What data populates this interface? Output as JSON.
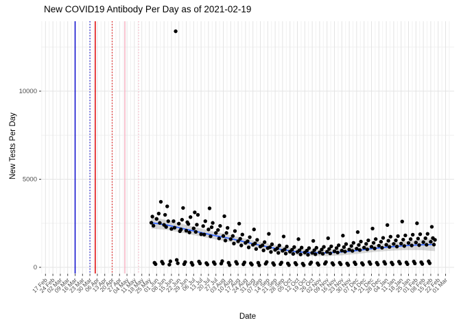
{
  "title": "New COVID19 Antibody Per Day as of 2021-02-19",
  "chart_data": {
    "type": "scatter",
    "title": "New COVID19 Antibody Per Day as of 2021-02-19",
    "xlabel": "Date",
    "ylabel": "New Tests Per Day",
    "x_epoch": "2020-02-17",
    "x_tick_interval_days": 7,
    "x_tick_labels": [
      "17 Feb",
      "24 Feb",
      "02 Mar",
      "09 Mar",
      "16 Mar",
      "23 Mar",
      "30 Mar",
      "06 Apr",
      "13 Apr",
      "20 Apr",
      "27 Apr",
      "04 May",
      "11 May",
      "18 May",
      "25 May",
      "01 Jun",
      "08 Jun",
      "15 Jun",
      "22 Jun",
      "29 Jun",
      "06 Jul",
      "13 Jul",
      "20 Jul",
      "27 Jul",
      "03 Aug",
      "10 Aug",
      "17 Aug",
      "24 Aug",
      "31 Aug",
      "07 Sep",
      "14 Sep",
      "21 Sep",
      "28 Sep",
      "05 Oct",
      "12 Oct",
      "19 Oct",
      "26 Oct",
      "02 Nov",
      "09 Nov",
      "16 Nov",
      "23 Nov",
      "30 Nov",
      "07 Dec",
      "14 Dec",
      "21 Dec",
      "28 Dec",
      "04 Jan",
      "11 Jan",
      "18 Jan",
      "25 Jan",
      "01 Feb",
      "08 Feb",
      "15 Feb",
      "22 Feb",
      "01 Mar"
    ],
    "y_ticks": [
      0,
      5000,
      10000
    ],
    "y_tick_labels": [
      "0",
      "5000",
      "10000"
    ],
    "y_minor_ticks": [
      2500,
      7500,
      12500
    ],
    "ylim": [
      -350,
      14000
    ],
    "xlim_days": [
      -4,
      386
    ],
    "grid": true,
    "legend": "none",
    "colors": {
      "point": "#000000",
      "smooth_line": "#3366FF",
      "ribbon": "rgba(125,125,125,0.30)",
      "grid_major": "#E3E3E3",
      "grid_minor": "#F1F1F1",
      "tick_mark": "#333333",
      "tick_label": "#4D4D4D",
      "vline_blue": "#1111CC",
      "vline_red": "#E01010",
      "vline_pink": "#F7B6C6"
    },
    "vlines": [
      {
        "day": 28,
        "date": "2020-03-16",
        "color": "#1111CC",
        "style": "solid"
      },
      {
        "day": 42,
        "date": "2020-03-30",
        "color": "#1111CC",
        "style": "dotted"
      },
      {
        "day": 47,
        "date": "2020-04-04",
        "color": "#E01010",
        "style": "solid"
      },
      {
        "day": 63,
        "date": "2020-04-20",
        "color": "#E01010",
        "style": "dotted"
      },
      {
        "day": 75,
        "date": "2020-05-02",
        "color": "#F7B6C6",
        "style": "solid"
      },
      {
        "day": 88,
        "date": "2020-05-15",
        "color": "#F7B6C6",
        "style": "dotted"
      }
    ],
    "smooth": {
      "days": [
        100,
        115,
        130,
        145,
        160,
        175,
        190,
        205,
        220,
        235,
        250,
        265,
        280,
        295,
        310,
        325,
        340,
        355,
        368
      ],
      "values": [
        2530,
        2400,
        2200,
        2000,
        1800,
        1630,
        1420,
        1220,
        1040,
        900,
        830,
        820,
        870,
        960,
        1070,
        1160,
        1230,
        1280,
        1300
      ],
      "ci_halfwidth": [
        330,
        280,
        250,
        230,
        215,
        205,
        195,
        190,
        185,
        185,
        185,
        185,
        190,
        195,
        205,
        220,
        250,
        300,
        380
      ]
    },
    "points": [
      [
        100,
        2530
      ],
      [
        101,
        2880
      ],
      [
        102,
        2360
      ],
      [
        103,
        260
      ],
      [
        104,
        180
      ],
      [
        105,
        2750
      ],
      [
        107,
        3050
      ],
      [
        108,
        2520
      ],
      [
        109,
        3720
      ],
      [
        110,
        320
      ],
      [
        111,
        210
      ],
      [
        112,
        2410
      ],
      [
        113,
        2980
      ],
      [
        114,
        2290
      ],
      [
        115,
        3460
      ],
      [
        116,
        2620
      ],
      [
        117,
        150
      ],
      [
        118,
        340
      ],
      [
        119,
        2180
      ],
      [
        121,
        2620
      ],
      [
        122,
        2250
      ],
      [
        123,
        13400
      ],
      [
        124,
        420
      ],
      [
        125,
        230
      ],
      [
        126,
        2480
      ],
      [
        127,
        2050
      ],
      [
        128,
        2150
      ],
      [
        129,
        2700
      ],
      [
        130,
        3370
      ],
      [
        131,
        180
      ],
      [
        132,
        300
      ],
      [
        133,
        2080
      ],
      [
        134,
        2560
      ],
      [
        135,
        2460
      ],
      [
        136,
        1980
      ],
      [
        137,
        2850
      ],
      [
        138,
        260
      ],
      [
        139,
        140
      ],
      [
        140,
        2210
      ],
      [
        141,
        3120
      ],
      [
        142,
        2010
      ],
      [
        143,
        2420
      ],
      [
        144,
        2980
      ],
      [
        145,
        330
      ],
      [
        146,
        220
      ],
      [
        147,
        1880
      ],
      [
        149,
        2340
      ],
      [
        150,
        1860
      ],
      [
        151,
        2620
      ],
      [
        152,
        240
      ],
      [
        153,
        160
      ],
      [
        154,
        2150
      ],
      [
        155,
        3350
      ],
      [
        156,
        1760
      ],
      [
        157,
        2280
      ],
      [
        158,
        2520
      ],
      [
        159,
        290
      ],
      [
        160,
        190
      ],
      [
        161,
        1950
      ],
      [
        163,
        2120
      ],
      [
        164,
        1640
      ],
      [
        165,
        2350
      ],
      [
        166,
        210
      ],
      [
        167,
        350
      ],
      [
        168,
        1780
      ],
      [
        169,
        2900
      ],
      [
        170,
        1520
      ],
      [
        171,
        1950
      ],
      [
        172,
        2240
      ],
      [
        173,
        260
      ],
      [
        174,
        130
      ],
      [
        175,
        1600
      ],
      [
        177,
        1780
      ],
      [
        178,
        1350
      ],
      [
        179,
        2060
      ],
      [
        180,
        310
      ],
      [
        181,
        200
      ],
      [
        182,
        1480
      ],
      [
        183,
        2480
      ],
      [
        184,
        1620
      ],
      [
        185,
        1240
      ],
      [
        186,
        1860
      ],
      [
        187,
        170
      ],
      [
        188,
        280
      ],
      [
        189,
        1390
      ],
      [
        191,
        1480
      ],
      [
        192,
        1130
      ],
      [
        193,
        1710
      ],
      [
        194,
        230
      ],
      [
        195,
        150
      ],
      [
        196,
        1280
      ],
      [
        197,
        2150
      ],
      [
        198,
        1360
      ],
      [
        199,
        1040
      ],
      [
        200,
        1560
      ],
      [
        201,
        260
      ],
      [
        202,
        120
      ],
      [
        203,
        1180
      ],
      [
        205,
        1250
      ],
      [
        206,
        960
      ],
      [
        207,
        1430
      ],
      [
        208,
        200
      ],
      [
        209,
        300
      ],
      [
        210,
        1090
      ],
      [
        211,
        1900
      ],
      [
        212,
        1140
      ],
      [
        213,
        870
      ],
      [
        214,
        1310
      ],
      [
        215,
        240
      ],
      [
        216,
        140
      ],
      [
        217,
        990
      ],
      [
        219,
        1080
      ],
      [
        220,
        820
      ],
      [
        221,
        1240
      ],
      [
        222,
        180
      ],
      [
        223,
        270
      ],
      [
        224,
        940
      ],
      [
        225,
        1750
      ],
      [
        226,
        1020
      ],
      [
        227,
        780
      ],
      [
        228,
        1180
      ],
      [
        229,
        220
      ],
      [
        230,
        130
      ],
      [
        231,
        890
      ],
      [
        233,
        1000
      ],
      [
        234,
        760
      ],
      [
        235,
        1150
      ],
      [
        236,
        250
      ],
      [
        237,
        160
      ],
      [
        238,
        870
      ],
      [
        239,
        1600
      ],
      [
        240,
        970
      ],
      [
        241,
        730
      ],
      [
        242,
        1120
      ],
      [
        243,
        210
      ],
      [
        244,
        120
      ],
      [
        245,
        840
      ],
      [
        247,
        950
      ],
      [
        248,
        710
      ],
      [
        249,
        1090
      ],
      [
        250,
        190
      ],
      [
        251,
        280
      ],
      [
        252,
        820
      ],
      [
        253,
        1500
      ],
      [
        254,
        970
      ],
      [
        255,
        740
      ],
      [
        256,
        1110
      ],
      [
        257,
        230
      ],
      [
        258,
        140
      ],
      [
        259,
        850
      ],
      [
        261,
        1010
      ],
      [
        262,
        770
      ],
      [
        263,
        1160
      ],
      [
        264,
        200
      ],
      [
        265,
        300
      ],
      [
        266,
        880
      ],
      [
        267,
        1650
      ],
      [
        268,
        1040
      ],
      [
        269,
        790
      ],
      [
        270,
        1190
      ],
      [
        271,
        240
      ],
      [
        272,
        150
      ],
      [
        273,
        910
      ],
      [
        275,
        1090
      ],
      [
        276,
        840
      ],
      [
        277,
        1250
      ],
      [
        278,
        260
      ],
      [
        279,
        170
      ],
      [
        280,
        950
      ],
      [
        281,
        1800
      ],
      [
        282,
        1150
      ],
      [
        283,
        890
      ],
      [
        284,
        1320
      ],
      [
        285,
        220
      ],
      [
        286,
        130
      ],
      [
        287,
        1010
      ],
      [
        289,
        1210
      ],
      [
        290,
        930
      ],
      [
        291,
        1390
      ],
      [
        292,
        280
      ],
      [
        293,
        180
      ],
      [
        294,
        1060
      ],
      [
        295,
        2000
      ],
      [
        296,
        1270
      ],
      [
        297,
        980
      ],
      [
        298,
        1460
      ],
      [
        299,
        240
      ],
      [
        300,
        150
      ],
      [
        301,
        1120
      ],
      [
        303,
        1330
      ],
      [
        304,
        1020
      ],
      [
        305,
        1530
      ],
      [
        306,
        300
      ],
      [
        307,
        190
      ],
      [
        308,
        1170
      ],
      [
        309,
        2200
      ],
      [
        310,
        1390
      ],
      [
        311,
        1070
      ],
      [
        312,
        1600
      ],
      [
        313,
        260
      ],
      [
        314,
        160
      ],
      [
        315,
        1230
      ],
      [
        317,
        1450
      ],
      [
        318,
        1110
      ],
      [
        319,
        1670
      ],
      [
        320,
        310
      ],
      [
        321,
        200
      ],
      [
        322,
        1280
      ],
      [
        323,
        2400
      ],
      [
        324,
        1510
      ],
      [
        325,
        1160
      ],
      [
        326,
        1740
      ],
      [
        327,
        270
      ],
      [
        328,
        170
      ],
      [
        329,
        1330
      ],
      [
        331,
        1530
      ],
      [
        332,
        1180
      ],
      [
        333,
        1770
      ],
      [
        334,
        320
      ],
      [
        335,
        210
      ],
      [
        336,
        1350
      ],
      [
        337,
        2600
      ],
      [
        338,
        1570
      ],
      [
        339,
        1210
      ],
      [
        340,
        1810
      ],
      [
        341,
        280
      ],
      [
        342,
        180
      ],
      [
        343,
        1380
      ],
      [
        345,
        1600
      ],
      [
        346,
        1240
      ],
      [
        347,
        1850
      ],
      [
        348,
        330
      ],
      [
        349,
        220
      ],
      [
        350,
        1410
      ],
      [
        351,
        2500
      ],
      [
        352,
        1630
      ],
      [
        353,
        1260
      ],
      [
        354,
        1880
      ],
      [
        355,
        290
      ],
      [
        356,
        190
      ],
      [
        357,
        1430
      ],
      [
        359,
        1650
      ],
      [
        360,
        1280
      ],
      [
        361,
        1900
      ],
      [
        362,
        340
      ],
      [
        363,
        230
      ],
      [
        364,
        1450
      ],
      [
        365,
        2300
      ],
      [
        366,
        1660
      ],
      [
        367,
        1290
      ],
      [
        368,
        1560
      ]
    ]
  }
}
